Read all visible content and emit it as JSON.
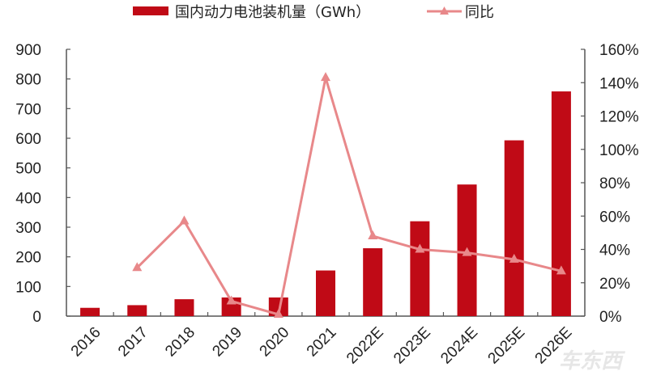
{
  "chart_data": {
    "type": "bar+line",
    "title": "",
    "categories": [
      "2016",
      "2017",
      "2018",
      "2019",
      "2020",
      "2021",
      "2022E",
      "2023E",
      "2024E",
      "2025E",
      "2026E"
    ],
    "series": [
      {
        "name": "国内动力电池装机量（GWh）",
        "type": "bar",
        "axis": "left",
        "color": "#C00A16",
        "values": [
          28,
          37,
          57,
          63,
          63,
          154,
          229,
          320,
          444,
          593,
          758
        ]
      },
      {
        "name": "同比",
        "type": "line",
        "axis": "right",
        "marker": "triangle",
        "color": "#E8888A",
        "values": [
          null,
          29,
          57,
          9,
          1,
          143,
          48,
          40,
          38,
          34,
          27
        ]
      }
    ],
    "left_axis": {
      "min": 0,
      "max": 900,
      "step": 100,
      "ticks": [
        "0",
        "100",
        "200",
        "300",
        "400",
        "500",
        "600",
        "700",
        "800",
        "900"
      ]
    },
    "right_axis": {
      "min": 0,
      "max": 160,
      "step": 20,
      "ticks": [
        "0%",
        "20%",
        "40%",
        "60%",
        "80%",
        "100%",
        "120%",
        "140%",
        "160%"
      ]
    },
    "xlabel": "",
    "ylabel": "",
    "y2label": "",
    "grid": false,
    "legend_position": "top"
  },
  "legend": {
    "bar_label": "国内动力电池装机量（GWh）",
    "line_label": "同比"
  },
  "watermark": "车东西"
}
